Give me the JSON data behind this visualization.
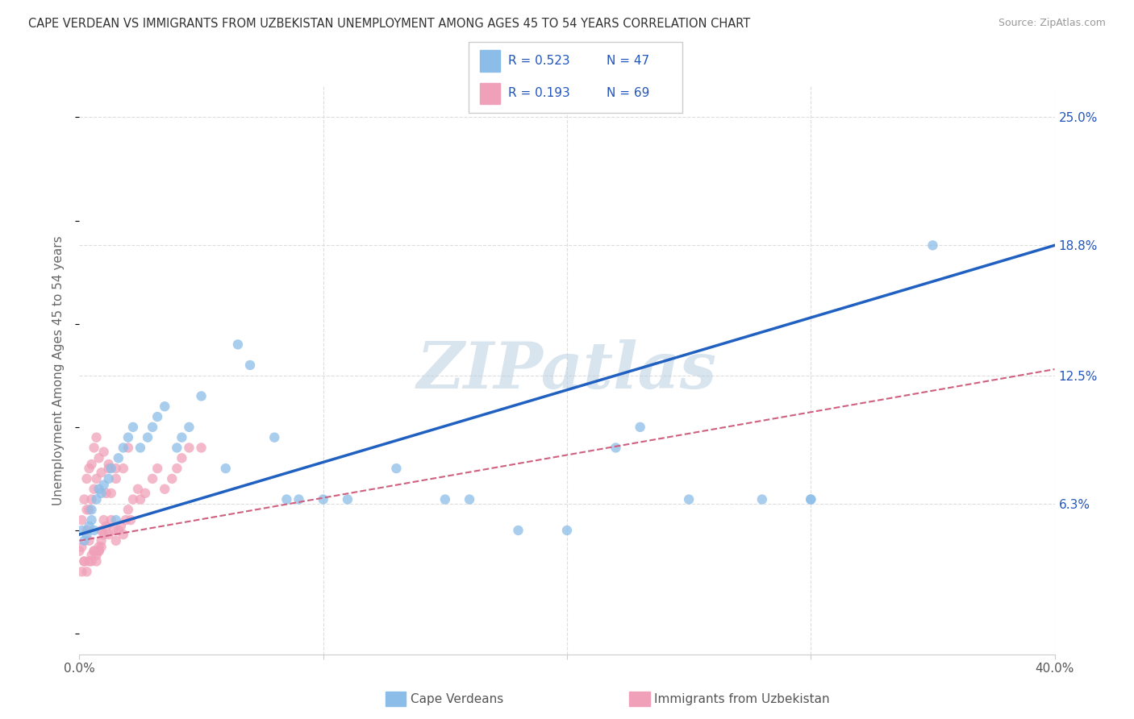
{
  "title": "CAPE VERDEAN VS IMMIGRANTS FROM UZBEKISTAN UNEMPLOYMENT AMONG AGES 45 TO 54 YEARS CORRELATION CHART",
  "source": "Source: ZipAtlas.com",
  "ylabel": "Unemployment Among Ages 45 to 54 years",
  "xlim": [
    0.0,
    0.4
  ],
  "ylim": [
    -0.01,
    0.265
  ],
  "ytick_labels_right": [
    "6.3%",
    "12.5%",
    "18.8%",
    "25.0%"
  ],
  "ytick_vals_right": [
    0.063,
    0.125,
    0.188,
    0.25
  ],
  "background_color": "#ffffff",
  "grid_color": "#dddddd",
  "watermark": "ZIPatlas",
  "watermark_color": "#b8cfe0",
  "legend_R1": "R = 0.523",
  "legend_N1": "N = 47",
  "legend_R2": "R = 0.193",
  "legend_N2": "N = 69",
  "blue_color": "#8bbde8",
  "pink_color": "#f0a0b8",
  "blue_line_color": "#2060c0",
  "pink_line_color": "#d06080",
  "legend_text_color": "#2255bb",
  "blue_line_x0": 0.0,
  "blue_line_y0": 0.048,
  "blue_line_x1": 0.4,
  "blue_line_y1": 0.188,
  "pink_line_x0": 0.0,
  "pink_line_y0": 0.045,
  "pink_line_x1": 0.4,
  "pink_line_y1": 0.128,
  "cape_verdean_x": [
    0.001,
    0.002,
    0.003,
    0.004,
    0.005,
    0.005,
    0.006,
    0.007,
    0.008,
    0.009,
    0.01,
    0.012,
    0.013,
    0.015,
    0.016,
    0.018,
    0.02,
    0.022,
    0.025,
    0.028,
    0.03,
    0.032,
    0.035,
    0.04,
    0.042,
    0.045,
    0.05,
    0.06,
    0.065,
    0.07,
    0.08,
    0.085,
    0.09,
    0.1,
    0.11,
    0.13,
    0.15,
    0.16,
    0.18,
    0.2,
    0.22,
    0.25,
    0.28,
    0.3,
    0.23,
    0.3,
    0.35
  ],
  "cape_verdean_y": [
    0.05,
    0.045,
    0.048,
    0.052,
    0.055,
    0.06,
    0.05,
    0.065,
    0.07,
    0.068,
    0.072,
    0.075,
    0.08,
    0.055,
    0.085,
    0.09,
    0.095,
    0.1,
    0.09,
    0.095,
    0.1,
    0.105,
    0.11,
    0.09,
    0.095,
    0.1,
    0.115,
    0.08,
    0.14,
    0.13,
    0.095,
    0.065,
    0.065,
    0.065,
    0.065,
    0.08,
    0.065,
    0.065,
    0.05,
    0.05,
    0.09,
    0.065,
    0.065,
    0.065,
    0.1,
    0.065,
    0.188
  ],
  "uzbek_x": [
    0.0,
    0.001,
    0.001,
    0.002,
    0.002,
    0.003,
    0.003,
    0.003,
    0.004,
    0.004,
    0.004,
    0.005,
    0.005,
    0.005,
    0.006,
    0.006,
    0.006,
    0.007,
    0.007,
    0.007,
    0.008,
    0.008,
    0.008,
    0.009,
    0.009,
    0.009,
    0.01,
    0.01,
    0.01,
    0.011,
    0.011,
    0.012,
    0.012,
    0.013,
    0.013,
    0.014,
    0.015,
    0.015,
    0.016,
    0.017,
    0.018,
    0.019,
    0.02,
    0.021,
    0.022,
    0.024,
    0.025,
    0.027,
    0.03,
    0.032,
    0.035,
    0.038,
    0.04,
    0.042,
    0.045,
    0.05,
    0.012,
    0.015,
    0.018,
    0.02,
    0.001,
    0.002,
    0.003,
    0.004,
    0.005,
    0.006,
    0.007,
    0.008,
    0.009
  ],
  "uzbek_y": [
    0.04,
    0.042,
    0.055,
    0.035,
    0.065,
    0.05,
    0.06,
    0.075,
    0.045,
    0.06,
    0.08,
    0.038,
    0.065,
    0.082,
    0.04,
    0.07,
    0.09,
    0.035,
    0.075,
    0.095,
    0.04,
    0.042,
    0.085,
    0.045,
    0.05,
    0.078,
    0.048,
    0.055,
    0.088,
    0.052,
    0.068,
    0.048,
    0.082,
    0.055,
    0.068,
    0.05,
    0.045,
    0.075,
    0.05,
    0.052,
    0.048,
    0.055,
    0.06,
    0.055,
    0.065,
    0.07,
    0.065,
    0.068,
    0.075,
    0.08,
    0.07,
    0.075,
    0.08,
    0.085,
    0.09,
    0.09,
    0.08,
    0.08,
    0.08,
    0.09,
    0.03,
    0.035,
    0.03,
    0.035,
    0.035,
    0.04,
    0.038,
    0.04,
    0.042
  ]
}
